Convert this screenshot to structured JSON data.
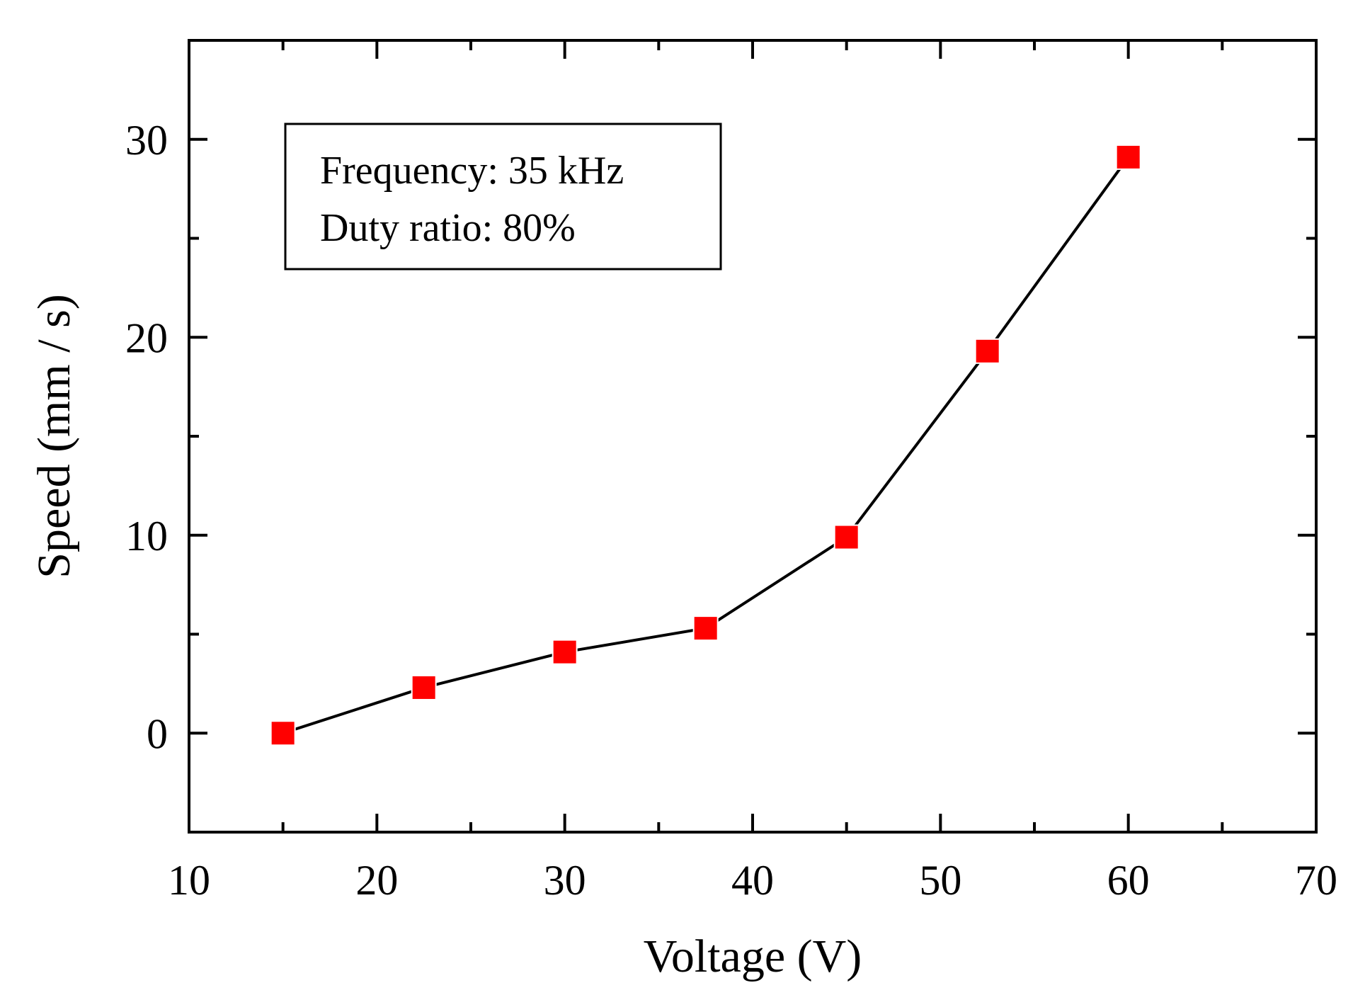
{
  "chart_data": {
    "type": "line",
    "title": "",
    "xlabel": "Voltage (V)",
    "ylabel": "Speed (mm / s)",
    "xlim": [
      10,
      70
    ],
    "ylim": [
      -5,
      35
    ],
    "x_ticks": [
      "10",
      "20",
      "30",
      "40",
      "50",
      "60",
      "70"
    ],
    "y_ticks": [
      "0",
      "10",
      "20",
      "30"
    ],
    "grid": false,
    "series": [
      {
        "name": "Speed",
        "x": [
          15,
          22.5,
          30,
          37.5,
          45,
          52.5,
          60
        ],
        "values": [
          0,
          2.3,
          4.1,
          5.3,
          9.9,
          19.3,
          29.1
        ],
        "marker": "square",
        "marker_color": "#ff0000",
        "line_color": "#000000"
      }
    ],
    "annotation": {
      "lines": [
        "Frequency: 35 kHz",
        "Duty ratio: 80%"
      ],
      "position": "top-left"
    }
  }
}
